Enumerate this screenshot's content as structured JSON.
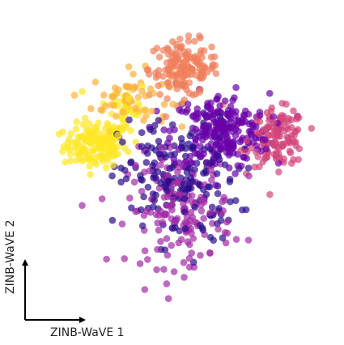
{
  "chart_data": {
    "type": "scatter",
    "title": "",
    "xlabel": "ZINB-WaVE 1",
    "ylabel": "ZINB-WaVE 2",
    "grid": false,
    "legend": "none",
    "xlim": [
      -4.2,
      4.4
    ],
    "ylim": [
      -4.9,
      4.4
    ],
    "point_alpha": 0.7,
    "series": [
      {
        "color": "#fde725",
        "description_key": "yellow-cluster",
        "center": [
          -2.4,
          0.4
        ],
        "spread": [
          0.45,
          0.35
        ],
        "count": 140,
        "tail": {
          "center": [
            -1.55,
            1.55
          ],
          "spread": [
            0.35,
            0.5
          ],
          "count": 45
        }
      },
      {
        "color": "#fbb13c",
        "description_key": "light-orange-cluster",
        "center": [
          -1.4,
          1.9
        ],
        "spread": [
          0.55,
          0.45
        ],
        "count": 60
      },
      {
        "color": "#ef7f5b",
        "description_key": "orange-cluster",
        "center": [
          0.15,
          2.85
        ],
        "spread": [
          0.5,
          0.45
        ],
        "count": 150
      },
      {
        "color": "#d1467a",
        "description_key": "pink-cluster",
        "center": [
          2.85,
          0.65
        ],
        "spread": [
          0.4,
          0.45
        ],
        "count": 130
      },
      {
        "color": "#6a00a8",
        "description_key": "purple-cluster",
        "center": [
          1.2,
          0.85
        ],
        "spread": [
          0.7,
          0.6
        ],
        "count": 230
      },
      {
        "color": "#2c0b8c",
        "description_key": "dark-blue-cluster",
        "center": [
          0.0,
          -0.7
        ],
        "spread": [
          0.85,
          1.0
        ],
        "count": 190
      },
      {
        "color": "#a22ba6",
        "description_key": "magenta-cluster",
        "center": [
          0.05,
          -1.65
        ],
        "spread": [
          0.75,
          0.9
        ],
        "count": 170
      }
    ]
  }
}
